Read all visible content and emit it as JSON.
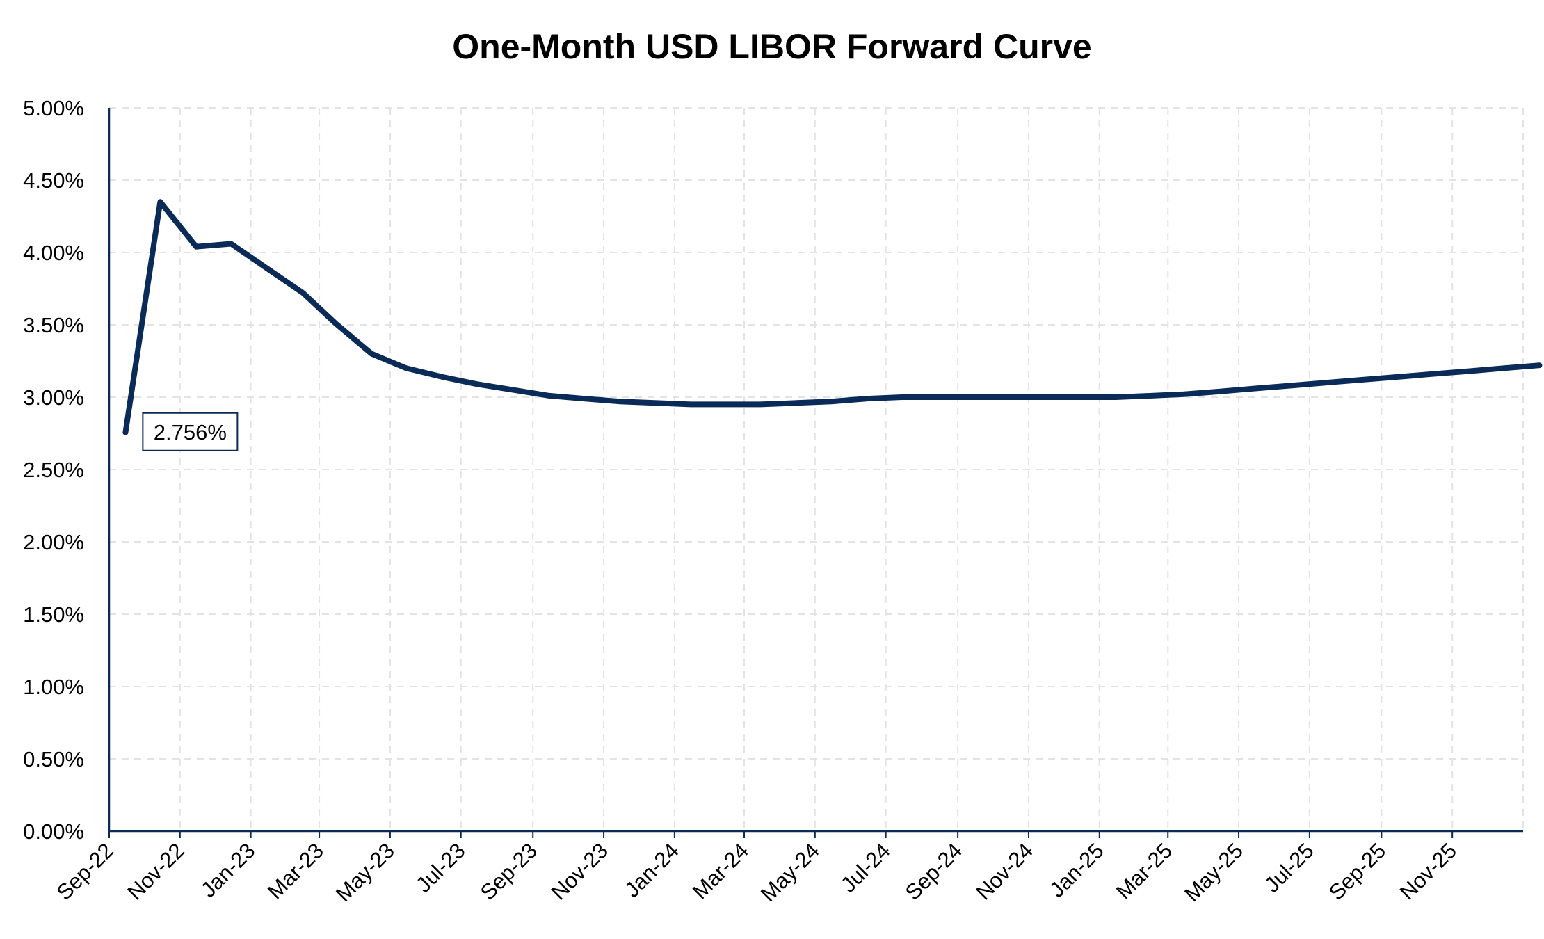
{
  "chart_data": {
    "type": "line",
    "title": "One-Month USD LIBOR Forward Curve",
    "xlabel": "",
    "ylabel": "",
    "ylim": [
      0,
      0.05
    ],
    "y_ticks": [
      "0.00%",
      "0.50%",
      "1.00%",
      "1.50%",
      "2.00%",
      "2.50%",
      "3.00%",
      "3.50%",
      "4.00%",
      "4.50%",
      "5.00%"
    ],
    "x_ticks": [
      "Sep-22",
      "Nov-22",
      "Jan-23",
      "Mar-23",
      "May-23",
      "Jul-23",
      "Sep-23",
      "Nov-23",
      "Jan-24",
      "Mar-24",
      "May-24",
      "Jul-24",
      "Sep-24",
      "Nov-24",
      "Jan-25",
      "Mar-25",
      "May-25",
      "Jul-25",
      "Sep-25",
      "Nov-25"
    ],
    "grid": true,
    "legend": "none",
    "line_color": "#0a2a57",
    "series": [
      {
        "x": [
          "2022-09-15",
          "2022-10-15",
          "2022-11-15",
          "2022-12-15",
          "2023-01-15",
          "2023-02-15",
          "2023-03-15",
          "2023-04-15",
          "2023-05-15",
          "2023-06-15",
          "2023-07-15",
          "2023-08-15",
          "2023-09-15",
          "2023-10-15",
          "2023-11-15",
          "2023-12-15",
          "2024-01-15",
          "2024-02-15",
          "2024-03-15",
          "2024-04-15",
          "2024-05-15",
          "2024-06-15",
          "2024-07-15",
          "2024-08-15",
          "2024-09-15",
          "2024-10-15",
          "2024-11-15",
          "2024-12-15",
          "2025-01-15",
          "2025-02-15",
          "2025-03-15",
          "2025-04-15",
          "2025-05-15",
          "2025-06-15",
          "2025-07-15",
          "2025-08-15",
          "2025-09-15",
          "2025-10-15",
          "2025-11-15",
          "2025-12-15",
          "2026-01-15"
        ],
        "values": [
          0.02756,
          0.0435,
          0.0404,
          0.0406,
          0.0389,
          0.0372,
          0.0351,
          0.033,
          0.032,
          0.0314,
          0.0309,
          0.0305,
          0.0301,
          0.0299,
          0.0297,
          0.0296,
          0.0295,
          0.0295,
          0.0295,
          0.0296,
          0.0297,
          0.0299,
          0.03,
          0.03,
          0.03,
          0.03,
          0.03,
          0.03,
          0.03,
          0.0301,
          0.0302,
          0.0304,
          0.0306,
          0.0308,
          0.031,
          0.0312,
          0.0314,
          0.0316,
          0.0318,
          0.032,
          0.0322
        ]
      }
    ],
    "data_label": {
      "text": "2.756%",
      "point_index": 0
    }
  }
}
